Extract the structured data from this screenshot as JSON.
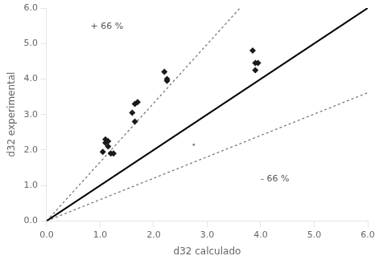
{
  "chart_data": {
    "type": "scatter",
    "xlabel": "d32 calculado",
    "ylabel": "d32 experimental",
    "xlim": [
      0.0,
      6.0
    ],
    "ylim": [
      0.0,
      6.0
    ],
    "xticks": [
      {
        "value": 0.0,
        "label": "0.0"
      },
      {
        "value": 1.0,
        "label": "1.0"
      },
      {
        "value": 2.0,
        "label": "2.0"
      },
      {
        "value": 3.0,
        "label": "3.0"
      },
      {
        "value": 4.0,
        "label": "4.0"
      },
      {
        "value": 5.0,
        "label": "5.0"
      },
      {
        "value": 6.0,
        "label": "6.0"
      }
    ],
    "yticks": [
      {
        "value": 0.0,
        "label": "0.0"
      },
      {
        "value": 1.0,
        "label": "1.0"
      },
      {
        "value": 2.0,
        "label": "2.0"
      },
      {
        "value": 3.0,
        "label": "3.0"
      },
      {
        "value": 4.0,
        "label": "4.0"
      },
      {
        "value": 5.0,
        "label": "5.0"
      },
      {
        "value": 6.0,
        "label": "6.0"
      }
    ],
    "grid": false,
    "series": [
      {
        "type": "scatter",
        "marker": "diamond",
        "color": "#1a1a1a",
        "x": [
          1.05,
          1.1,
          1.1,
          1.15,
          1.15,
          1.2,
          1.25,
          1.6,
          1.65,
          1.65,
          1.7,
          2.2,
          2.25,
          2.25,
          3.85,
          3.9,
          3.9,
          3.95
        ],
        "values": [
          1.95,
          2.3,
          2.2,
          2.25,
          2.1,
          1.9,
          1.9,
          3.05,
          2.8,
          3.3,
          3.35,
          4.2,
          4.0,
          3.95,
          4.8,
          4.45,
          4.25,
          4.45
        ]
      },
      {
        "type": "scatter",
        "marker": "point",
        "color": "#888888",
        "x": [
          2.75
        ],
        "values": [
          2.15
        ]
      },
      {
        "type": "line",
        "line_style": "solid",
        "color": "#000000",
        "x": [
          0.0,
          6.0
        ],
        "values": [
          0.0,
          6.0
        ]
      },
      {
        "type": "line",
        "line_style": "dotted",
        "color": "#707070",
        "x": [
          0.0,
          3.614457831325301
        ],
        "values": [
          0.0,
          6.0
        ]
      },
      {
        "type": "line",
        "line_style": "dotted",
        "color": "#707070",
        "x": [
          0.0,
          6.0
        ],
        "values": [
          0.0,
          3.6144578313253013
        ]
      }
    ],
    "annotations": [
      {
        "text": "+ 66 %",
        "x": 0.82,
        "y": 5.35
      },
      {
        "text": "- 66 %",
        "x": 4.0,
        "y": 1.05
      }
    ]
  }
}
